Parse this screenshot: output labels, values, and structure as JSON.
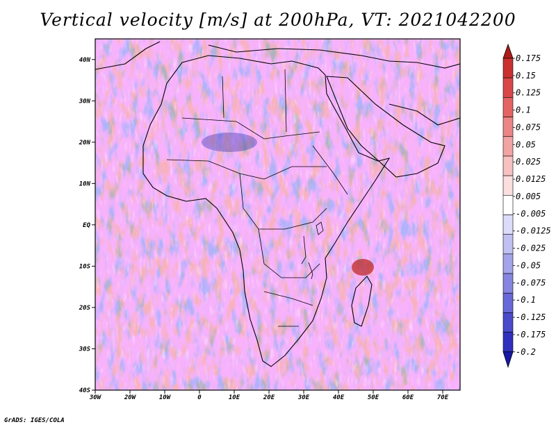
{
  "title": "Vertical velocity [m/s] at 200hPa, VT: 2021042200",
  "credit": "GrADS: IGES/COLA",
  "map": {
    "region": "Africa",
    "variable": "Vertical velocity",
    "units": "m/s",
    "level": "200hPa",
    "valid_time": "2021042200",
    "lat_labels": [
      "40N",
      "30N",
      "20N",
      "10N",
      "EQ",
      "10S",
      "20S",
      "30S",
      "40S"
    ],
    "lat_values": [
      40,
      30,
      20,
      10,
      0,
      -10,
      -20,
      -30,
      -40
    ],
    "lon_labels": [
      "30W",
      "20W",
      "10W",
      "0",
      "10E",
      "20E",
      "30E",
      "40E",
      "50E",
      "60E",
      "70E"
    ],
    "lon_values": [
      -30,
      -20,
      -10,
      0,
      10,
      20,
      30,
      40,
      50,
      60,
      70
    ],
    "lat_range": [
      -40,
      45
    ],
    "lon_range": [
      -30,
      75
    ]
  },
  "colorbar": {
    "labels": [
      "0.175",
      "0.15",
      "0.125",
      "0.1",
      "0.075",
      "0.05",
      "0.025",
      "0.0125",
      "0.005",
      "-0.005",
      "-0.0125",
      "-0.025",
      "-0.05",
      "-0.075",
      "-0.1",
      "-0.125",
      "-0.175",
      "-0.2"
    ],
    "colors": [
      "#b01a1a",
      "#c93030",
      "#d94848",
      "#e46464",
      "#ec8585",
      "#f2a3a3",
      "#f7c1c1",
      "#fbdede",
      "#ffffff",
      "#dcdcfa",
      "#c0c0f2",
      "#a4a4ea",
      "#8686e0",
      "#6868d6",
      "#4a4acb",
      "#3030bd",
      "#1818a8"
    ]
  }
}
